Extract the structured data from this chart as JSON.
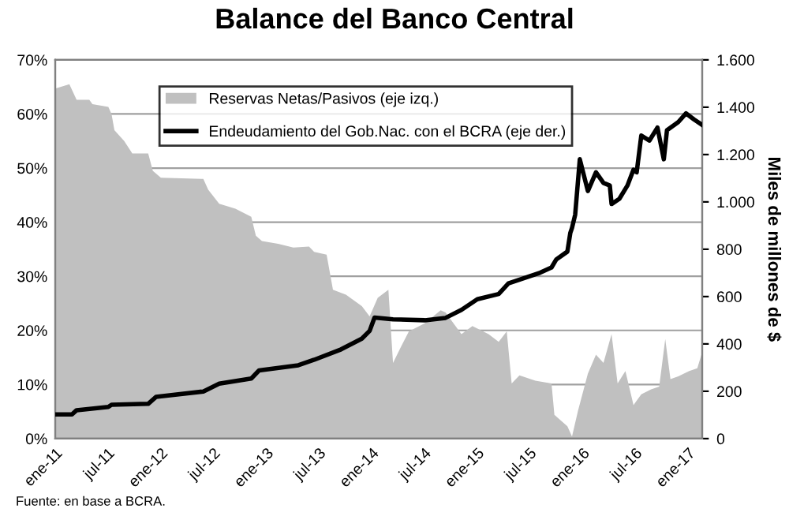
{
  "chart_data": {
    "type": "area",
    "title": "Balance del Banco Central",
    "y2label": "Miles de millones de $",
    "annotations": [
      "Fuente: en base a BCRA."
    ],
    "series": [
      {
        "name": "Reservas Netas/Pasivos (eje izq.)",
        "color": "#c0c0c0",
        "x": [
          "2011-01-01",
          "2011-02-19",
          "2011-03-16",
          "2011-04-29",
          "2011-05-10",
          "2011-07-04",
          "2011-07-15",
          "2011-07-25",
          "2011-08-28",
          "2011-09-25",
          "2011-11-19",
          "2011-12-05",
          "2012-01-02",
          "2012-05-28",
          "2012-06-14",
          "2012-07-22",
          "2012-09-16",
          "2012-11-10",
          "2012-11-26",
          "2012-12-17",
          "2013-02-11",
          "2013-04-05",
          "2013-05-29",
          "2013-06-16",
          "2013-07-29",
          "2013-08-20",
          "2013-10-04",
          "2013-11-28",
          "2013-12-25",
          "2014-01-22",
          "2014-02-28",
          "2014-03-16",
          "2014-04-13",
          "2014-05-10",
          "2014-07-04",
          "2014-08-28",
          "2014-09-14",
          "2014-11-08",
          "2014-12-16",
          "2015-02-10",
          "2015-03-17",
          "2015-04-14",
          "2015-05-01",
          "2015-05-28",
          "2015-07-22",
          "2015-09-16",
          "2015-09-26",
          "2015-11-10",
          "2015-11-26",
          "2015-12-17",
          "2016-01-20",
          "2016-02-17",
          "2016-03-14",
          "2016-04-11",
          "2016-05-02",
          "2016-05-29",
          "2016-06-26",
          "2016-07-23",
          "2016-08-26",
          "2016-09-23",
          "2016-10-14",
          "2016-11-01",
          "2016-11-28",
          "2017-01-05",
          "2017-02-02",
          "2017-02-19"
        ],
        "values": [
          64.7,
          65.5,
          62.6,
          62.6,
          61.8,
          61.3,
          60,
          57,
          55,
          52.7,
          52.7,
          49.5,
          48.2,
          48,
          46,
          43.4,
          42.5,
          41,
          37.5,
          36.5,
          36,
          35.3,
          35.5,
          34.5,
          34,
          27.5,
          26.6,
          24.5,
          22.6,
          26,
          27.5,
          14,
          17,
          19.8,
          21.3,
          23.7,
          23.3,
          19.3,
          20.8,
          19.3,
          17.9,
          19.8,
          10.2,
          11.7,
          10.7,
          10.2,
          4.4,
          2.3,
          0.4,
          5.2,
          12,
          15.5,
          14,
          19.3,
          10.2,
          12.5,
          6.2,
          8.2,
          9.1,
          9.6,
          18.4,
          11,
          11.5,
          12.5,
          13,
          16
        ]
      },
      {
        "name": "Endeudamiento del Gob.Nac. con el BCRA (eje der.)",
        "type": "line",
        "axis": "y2",
        "color": "#000000",
        "x": [
          "2011-01-01",
          "2011-02-28",
          "2011-03-16",
          "2011-07-04",
          "2011-07-15",
          "2011-11-19",
          "2011-12-16",
          "2012-05-28",
          "2012-07-22",
          "2012-11-10",
          "2012-12-07",
          "2013-04-22",
          "2013-06-16",
          "2013-09-17",
          "2013-11-28",
          "2013-12-25",
          "2014-01-11",
          "2014-03-16",
          "2014-07-04",
          "2014-09-14",
          "2014-11-08",
          "2015-01-02",
          "2015-03-17",
          "2015-04-20",
          "2015-06-14",
          "2015-08-08",
          "2015-09-16",
          "2015-10-02",
          "2015-11-10",
          "2015-11-20",
          "2015-11-26",
          "2015-12-07",
          "2015-12-23",
          "2016-01-20",
          "2016-02-17",
          "2016-03-14",
          "2016-04-05",
          "2016-04-11",
          "2016-05-08",
          "2016-06-05",
          "2016-06-26",
          "2016-07-07",
          "2016-07-23",
          "2016-08-20",
          "2016-09-17",
          "2016-10-09",
          "2016-10-20",
          "2016-11-28",
          "2016-12-25",
          "2017-01-22",
          "2017-02-19"
        ],
        "values": [
          102,
          102,
          120,
          134,
          143,
          147,
          176,
          199,
          232,
          254,
          288,
          310,
          333,
          377,
          422,
          455,
          511,
          504,
          500,
          510,
          544,
          589,
          611,
          656,
          678,
          701,
          723,
          756,
          790,
          868,
          890,
          946,
          1180,
          1046,
          1125,
          1080,
          1069,
          991,
          1013,
          1069,
          1136,
          1125,
          1280,
          1259,
          1314,
          1180,
          1303,
          1337,
          1374,
          1348,
          1325
        ]
      }
    ],
    "xlim": [
      "2011-01-01",
      "2017-02-19"
    ],
    "xticks": [
      {
        "value": "2011-01",
        "label": "ene-11"
      },
      {
        "value": "2011-07",
        "label": "jul-11"
      },
      {
        "value": "2012-01",
        "label": "ene-12"
      },
      {
        "value": "2012-07",
        "label": "jul-12"
      },
      {
        "value": "2013-01",
        "label": "ene-13"
      },
      {
        "value": "2013-07",
        "label": "jul-13"
      },
      {
        "value": "2014-01",
        "label": "ene-14"
      },
      {
        "value": "2014-07",
        "label": "jul-14"
      },
      {
        "value": "2015-01",
        "label": "ene-15"
      },
      {
        "value": "2015-07",
        "label": "jul-15"
      },
      {
        "value": "2016-01",
        "label": "ene-16"
      },
      {
        "value": "2016-07",
        "label": "jul-16"
      },
      {
        "value": "2017-01",
        "label": "ene-17"
      }
    ],
    "ylim": [
      0,
      70
    ],
    "yticks": [
      {
        "value": 0,
        "label": "0%"
      },
      {
        "value": 10,
        "label": "10%"
      },
      {
        "value": 20,
        "label": "20%"
      },
      {
        "value": 30,
        "label": "30%"
      },
      {
        "value": 40,
        "label": "40%"
      },
      {
        "value": 50,
        "label": "50%"
      },
      {
        "value": 60,
        "label": "60%"
      },
      {
        "value": 70,
        "label": "70%"
      }
    ],
    "y2lim": [
      0,
      1600
    ],
    "y2ticks": [
      0,
      200,
      400,
      600,
      800,
      {
        "value": 1000,
        "label": "1.000"
      },
      {
        "value": 1200,
        "label": "1.200"
      },
      {
        "value": 1400,
        "label": "1.400"
      },
      {
        "value": 1600,
        "label": "1.600"
      }
    ],
    "grid": "y",
    "legend": "top",
    "line_style": "solid",
    "marker": "none"
  }
}
